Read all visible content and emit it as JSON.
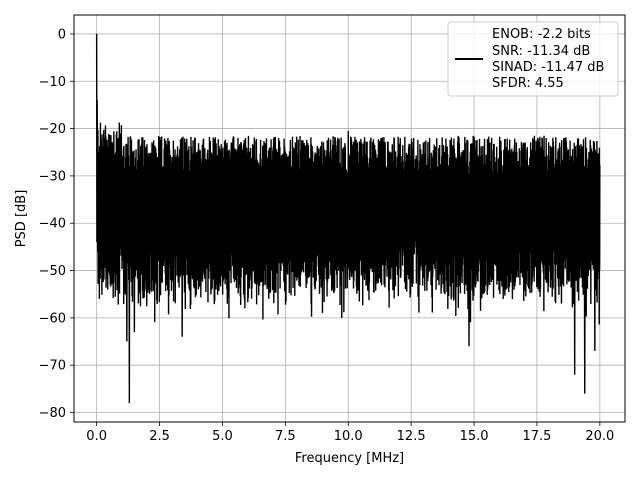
{
  "chart_data": {
    "type": "line",
    "xlabel": "Frequency [MHz]",
    "ylabel": "PSD [dB]",
    "xlim": [
      -0.9,
      21.0
    ],
    "ylim": [
      -82,
      4
    ],
    "xticks": [
      0.0,
      2.5,
      5.0,
      7.5,
      10.0,
      12.5,
      15.0,
      17.5,
      20.0
    ],
    "xtick_labels": [
      "0.0",
      "2.5",
      "5.0",
      "7.5",
      "10.0",
      "12.5",
      "15.0",
      "17.5",
      "20.0"
    ],
    "yticks": [
      0,
      -10,
      -20,
      -30,
      -40,
      -50,
      -60,
      -70,
      -80
    ],
    "ytick_labels": [
      "0",
      "−10",
      "−20",
      "−30",
      "−40",
      "−50",
      "−60",
      "−70",
      "−80"
    ],
    "grid": true,
    "legend_position": "top-right",
    "series_color": "#000000",
    "legend": {
      "lines": [
        "ENOB: -2.2 bits",
        "SNR: -11.34 dB",
        "SINAD: -11.47 dB",
        "SFDR: 4.55"
      ]
    },
    "series": [
      {
        "x_range": [
          0.0,
          20.0
        ],
        "features": {
          "peak": {
            "x": 0.0,
            "y": 0.0
          },
          "upper_envelope": -26,
          "lower_envelope": -48,
          "notable_dips": [
            {
              "x": 1.2,
              "y": -65
            },
            {
              "x": 1.3,
              "y": -78
            },
            {
              "x": 1.5,
              "y": -63
            },
            {
              "x": 3.4,
              "y": -64
            },
            {
              "x": 14.8,
              "y": -66
            },
            {
              "x": 19.0,
              "y": -72
            },
            {
              "x": 19.4,
              "y": -76
            },
            {
              "x": 19.8,
              "y": -67
            }
          ],
          "notable_peaks": [
            {
              "x": 10.0,
              "y": -20.5
            },
            {
              "x": 12.6,
              "y": -22
            },
            {
              "x": 18.6,
              "y": -22
            }
          ]
        }
      }
    ]
  }
}
